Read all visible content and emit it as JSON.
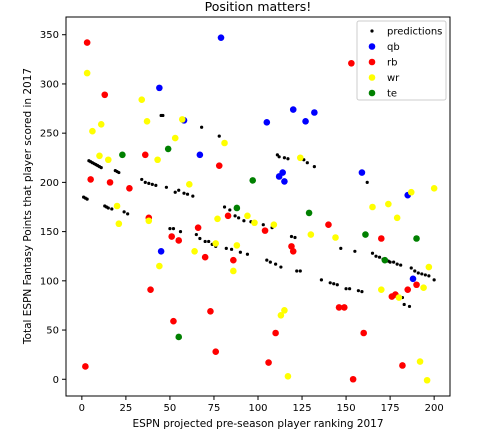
{
  "chart_data": {
    "type": "scatter",
    "title": "Position matters!",
    "xlabel": "ESPN projected pre-season player ranking 2017",
    "ylabel": "Total ESPN Fantasy Points that player scored in 2017",
    "xlim": [
      -9,
      209
    ],
    "ylim": [
      -17,
      368
    ],
    "xticks": [
      0,
      25,
      50,
      75,
      100,
      125,
      150,
      175,
      200
    ],
    "yticks": [
      0,
      50,
      100,
      150,
      200,
      250,
      300,
      350
    ],
    "grid": false,
    "legend_position": "top-right",
    "series": [
      {
        "name": "predictions",
        "color": "#000000",
        "marker_size": "small",
        "points": [
          [
            1,
            185
          ],
          [
            2,
            184
          ],
          [
            3,
            183
          ],
          [
            4,
            222
          ],
          [
            5,
            221
          ],
          [
            6,
            220
          ],
          [
            7,
            219
          ],
          [
            8,
            218
          ],
          [
            9,
            217
          ],
          [
            10,
            216
          ],
          [
            11,
            215
          ],
          [
            13,
            176
          ],
          [
            14,
            175
          ],
          [
            15,
            174
          ],
          [
            17,
            173
          ],
          [
            19,
            212
          ],
          [
            20,
            211
          ],
          [
            21,
            210
          ],
          [
            24,
            170
          ],
          [
            26,
            168
          ],
          [
            34,
            203
          ],
          [
            36,
            200
          ],
          [
            38,
            199
          ],
          [
            40,
            198
          ],
          [
            42,
            197
          ],
          [
            45,
            268
          ],
          [
            46,
            268
          ],
          [
            48,
            195
          ],
          [
            50,
            153
          ],
          [
            52,
            153
          ],
          [
            53,
            190
          ],
          [
            55,
            192
          ],
          [
            56,
            150
          ],
          [
            58,
            189
          ],
          [
            60,
            188
          ],
          [
            63,
            186
          ],
          [
            65,
            147
          ],
          [
            67,
            143
          ],
          [
            68,
            256
          ],
          [
            70,
            140
          ],
          [
            72,
            140
          ],
          [
            74,
            137
          ],
          [
            76,
            135
          ],
          [
            78,
            247
          ],
          [
            81,
            175
          ],
          [
            82,
            133
          ],
          [
            84,
            172
          ],
          [
            85,
            132
          ],
          [
            87,
            166
          ],
          [
            89,
            164
          ],
          [
            90,
            129
          ],
          [
            92,
            161
          ],
          [
            94,
            127
          ],
          [
            96,
            160
          ],
          [
            98,
            160
          ],
          [
            103,
            157
          ],
          [
            105,
            121
          ],
          [
            107,
            119
          ],
          [
            108,
            154
          ],
          [
            110,
            117
          ],
          [
            111,
            228
          ],
          [
            112,
            226
          ],
          [
            113,
            114
          ],
          [
            115,
            225
          ],
          [
            117,
            224
          ],
          [
            119,
            145
          ],
          [
            121,
            144
          ],
          [
            122,
            110
          ],
          [
            124,
            110
          ],
          [
            126,
            223
          ],
          [
            128,
            220
          ],
          [
            132,
            216
          ],
          [
            136,
            101
          ],
          [
            141,
            98
          ],
          [
            143,
            97
          ],
          [
            145,
            96
          ],
          [
            147,
            133
          ],
          [
            150,
            92
          ],
          [
            152,
            92
          ],
          [
            155,
            130
          ],
          [
            157,
            90
          ],
          [
            159,
            89
          ],
          [
            162,
            200
          ],
          [
            165,
            128
          ],
          [
            167,
            125
          ],
          [
            169,
            124
          ],
          [
            171,
            122
          ],
          [
            172,
            121
          ],
          [
            174,
            120
          ],
          [
            175,
            119
          ],
          [
            177,
            119
          ],
          [
            179,
            117
          ],
          [
            181,
            116
          ],
          [
            182,
            83
          ],
          [
            183,
            76
          ],
          [
            186,
            74
          ],
          [
            187,
            113
          ],
          [
            189,
            110
          ],
          [
            191,
            108
          ],
          [
            193,
            107
          ],
          [
            195,
            106
          ],
          [
            197,
            105
          ],
          [
            200,
            101
          ]
        ]
      },
      {
        "name": "qb",
        "color": "#0000ff",
        "marker_size": "large",
        "points": [
          [
            44,
            296
          ],
          [
            45,
            130
          ],
          [
            58,
            263
          ],
          [
            67,
            228
          ],
          [
            79,
            347
          ],
          [
            105,
            261
          ],
          [
            112,
            206
          ],
          [
            114,
            210
          ],
          [
            115,
            201
          ],
          [
            120,
            274
          ],
          [
            127,
            262
          ],
          [
            132,
            271
          ],
          [
            159,
            210
          ],
          [
            185,
            187
          ],
          [
            188,
            102
          ]
        ]
      },
      {
        "name": "rb",
        "color": "#ff0000",
        "marker_size": "large",
        "points": [
          [
            2,
            13
          ],
          [
            3,
            342
          ],
          [
            5,
            203
          ],
          [
            13,
            289
          ],
          [
            16,
            200
          ],
          [
            27,
            194
          ],
          [
            36,
            228
          ],
          [
            38,
            164
          ],
          [
            39,
            91
          ],
          [
            51,
            145
          ],
          [
            52,
            59
          ],
          [
            55,
            141
          ],
          [
            66,
            154
          ],
          [
            70,
            124
          ],
          [
            73,
            69
          ],
          [
            76,
            28
          ],
          [
            78,
            217
          ],
          [
            83,
            166
          ],
          [
            86,
            121
          ],
          [
            104,
            151
          ],
          [
            106,
            17
          ],
          [
            110,
            47
          ],
          [
            119,
            135
          ],
          [
            120,
            130
          ],
          [
            140,
            157
          ],
          [
            146,
            73
          ],
          [
            149,
            73
          ],
          [
            153,
            321
          ],
          [
            154,
            0
          ],
          [
            160,
            47
          ],
          [
            170,
            143
          ],
          [
            176,
            84
          ],
          [
            178,
            86
          ],
          [
            182,
            14
          ],
          [
            185,
            91
          ],
          [
            190,
            96
          ]
        ]
      },
      {
        "name": "wr",
        "color": "#ffff00",
        "marker_size": "large",
        "points": [
          [
            3,
            311
          ],
          [
            6,
            252
          ],
          [
            10,
            227
          ],
          [
            11,
            259
          ],
          [
            15,
            223
          ],
          [
            20,
            176
          ],
          [
            21,
            158
          ],
          [
            34,
            284
          ],
          [
            37,
            262
          ],
          [
            38,
            161
          ],
          [
            43,
            223
          ],
          [
            44,
            115
          ],
          [
            53,
            245
          ],
          [
            57,
            264
          ],
          [
            61,
            198
          ],
          [
            64,
            130
          ],
          [
            76,
            138
          ],
          [
            77,
            163
          ],
          [
            81,
            240
          ],
          [
            86,
            110
          ],
          [
            88,
            136
          ],
          [
            94,
            166
          ],
          [
            98,
            159
          ],
          [
            109,
            157
          ],
          [
            113,
            65
          ],
          [
            115,
            70
          ],
          [
            117,
            3
          ],
          [
            124,
            225
          ],
          [
            130,
            147
          ],
          [
            144,
            144
          ],
          [
            165,
            175
          ],
          [
            170,
            91
          ],
          [
            174,
            178
          ],
          [
            179,
            164
          ],
          [
            180,
            83
          ],
          [
            187,
            190
          ],
          [
            192,
            18
          ],
          [
            194,
            93
          ],
          [
            196,
            -1
          ],
          [
            197,
            114
          ],
          [
            200,
            194
          ]
        ]
      },
      {
        "name": "te",
        "color": "#008000",
        "marker_size": "large",
        "points": [
          [
            23,
            228
          ],
          [
            49,
            234
          ],
          [
            55,
            43
          ],
          [
            88,
            174
          ],
          [
            97,
            202
          ],
          [
            129,
            169
          ],
          [
            161,
            147
          ],
          [
            172,
            121
          ],
          [
            190,
            143
          ]
        ]
      }
    ]
  }
}
